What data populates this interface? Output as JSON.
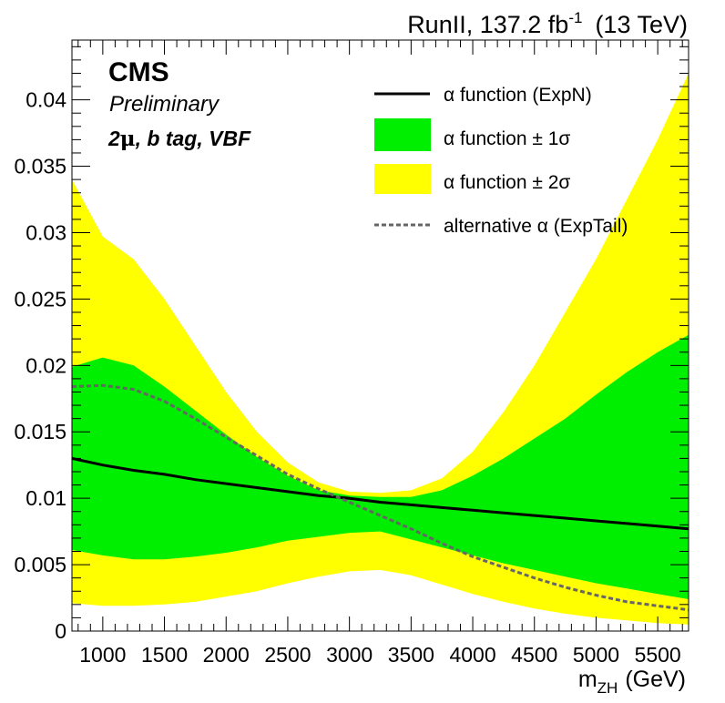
{
  "header": {
    "run_label": "RunII, 137.2 fb",
    "lumi_exp": "-1",
    "energy": "(13 TeV)"
  },
  "annotations": {
    "experiment": "CMS",
    "status": "Preliminary",
    "category_prefix": "2",
    "category_mu": "μ",
    "category_suffix": ", b tag, VBF"
  },
  "axes": {
    "xlabel_main": "m",
    "xlabel_sub": "ZH",
    "xlabel_unit": "(GeV)"
  },
  "colors": {
    "band_1sigma": "#00ee00",
    "band_2sigma": "#ffff00",
    "nominal_line": "#000000",
    "alternative_line": "#666666"
  },
  "chart_data": {
    "type": "line",
    "xlim": [
      750,
      5750
    ],
    "ylim": [
      0,
      0.0445
    ],
    "x_ticks": [
      1000,
      1500,
      2000,
      2500,
      3000,
      3500,
      4000,
      4500,
      5000,
      5500
    ],
    "y_ticks": [
      0,
      0.005,
      0.01,
      0.015,
      0.02,
      0.025,
      0.03,
      0.035,
      0.04
    ],
    "y_tick_labels": [
      "0",
      "0.005",
      "0.01",
      "0.015",
      "0.02",
      "0.025",
      "0.03",
      "0.035",
      "0.04"
    ],
    "x": [
      750,
      1000,
      1250,
      1500,
      1750,
      2000,
      2250,
      2500,
      2750,
      3000,
      3250,
      3500,
      3750,
      4000,
      4250,
      4500,
      4750,
      5000,
      5250,
      5500,
      5750
    ],
    "series": [
      {
        "name": "α function (ExpN)",
        "style": "solid",
        "values": [
          0.013,
          0.0125,
          0.0121,
          0.0118,
          0.0114,
          0.0111,
          0.0108,
          0.0105,
          0.0102,
          0.01,
          0.0097,
          0.0095,
          0.0093,
          0.0091,
          0.0089,
          0.0087,
          0.0085,
          0.0083,
          0.0081,
          0.0079,
          0.0077
        ]
      },
      {
        "name": "alternative α (ExpTail)",
        "style": "dashed",
        "values": [
          0.0184,
          0.0185,
          0.0182,
          0.0173,
          0.016,
          0.0146,
          0.0132,
          0.0118,
          0.0107,
          0.0097,
          0.0087,
          0.0077,
          0.0066,
          0.0056,
          0.0048,
          0.004,
          0.0033,
          0.0027,
          0.0022,
          0.0019,
          0.0016
        ]
      }
    ],
    "bands": [
      {
        "name": "α function ± 2σ",
        "lower": [
          0.0021,
          0.0019,
          0.0019,
          0.002,
          0.0022,
          0.0026,
          0.003,
          0.0036,
          0.0041,
          0.0045,
          0.0046,
          0.0042,
          0.0035,
          0.0028,
          0.0022,
          0.0017,
          0.0013,
          0.001,
          0.0008,
          0.0006,
          0.0005
        ],
        "upper": [
          0.034,
          0.0297,
          0.028,
          0.025,
          0.0215,
          0.018,
          0.015,
          0.0127,
          0.0112,
          0.0105,
          0.0104,
          0.0106,
          0.0115,
          0.0135,
          0.0165,
          0.02,
          0.024,
          0.028,
          0.0325,
          0.037,
          0.042
        ]
      },
      {
        "name": "α function ± 1σ",
        "lower": [
          0.0061,
          0.0057,
          0.0054,
          0.0054,
          0.0056,
          0.0059,
          0.0063,
          0.0068,
          0.0071,
          0.0074,
          0.0075,
          0.0069,
          0.0063,
          0.0057,
          0.0051,
          0.0046,
          0.0041,
          0.0036,
          0.0032,
          0.0028,
          0.0024
        ],
        "upper": [
          0.0199,
          0.0206,
          0.02,
          0.0184,
          0.0166,
          0.0148,
          0.0131,
          0.0117,
          0.0106,
          0.0102,
          0.0101,
          0.0101,
          0.0106,
          0.0117,
          0.013,
          0.0145,
          0.016,
          0.0178,
          0.0195,
          0.021,
          0.0223
        ]
      }
    ],
    "legend": {
      "placement": "top-right",
      "entries": [
        {
          "label": "α function (ExpN)",
          "kind": "solid-line"
        },
        {
          "label": "α function ± 1σ",
          "kind": "green-box"
        },
        {
          "label": "α function ± 2σ",
          "kind": "yellow-box"
        },
        {
          "label": "alternative α (ExpTail)",
          "kind": "dashed-line"
        }
      ]
    }
  }
}
